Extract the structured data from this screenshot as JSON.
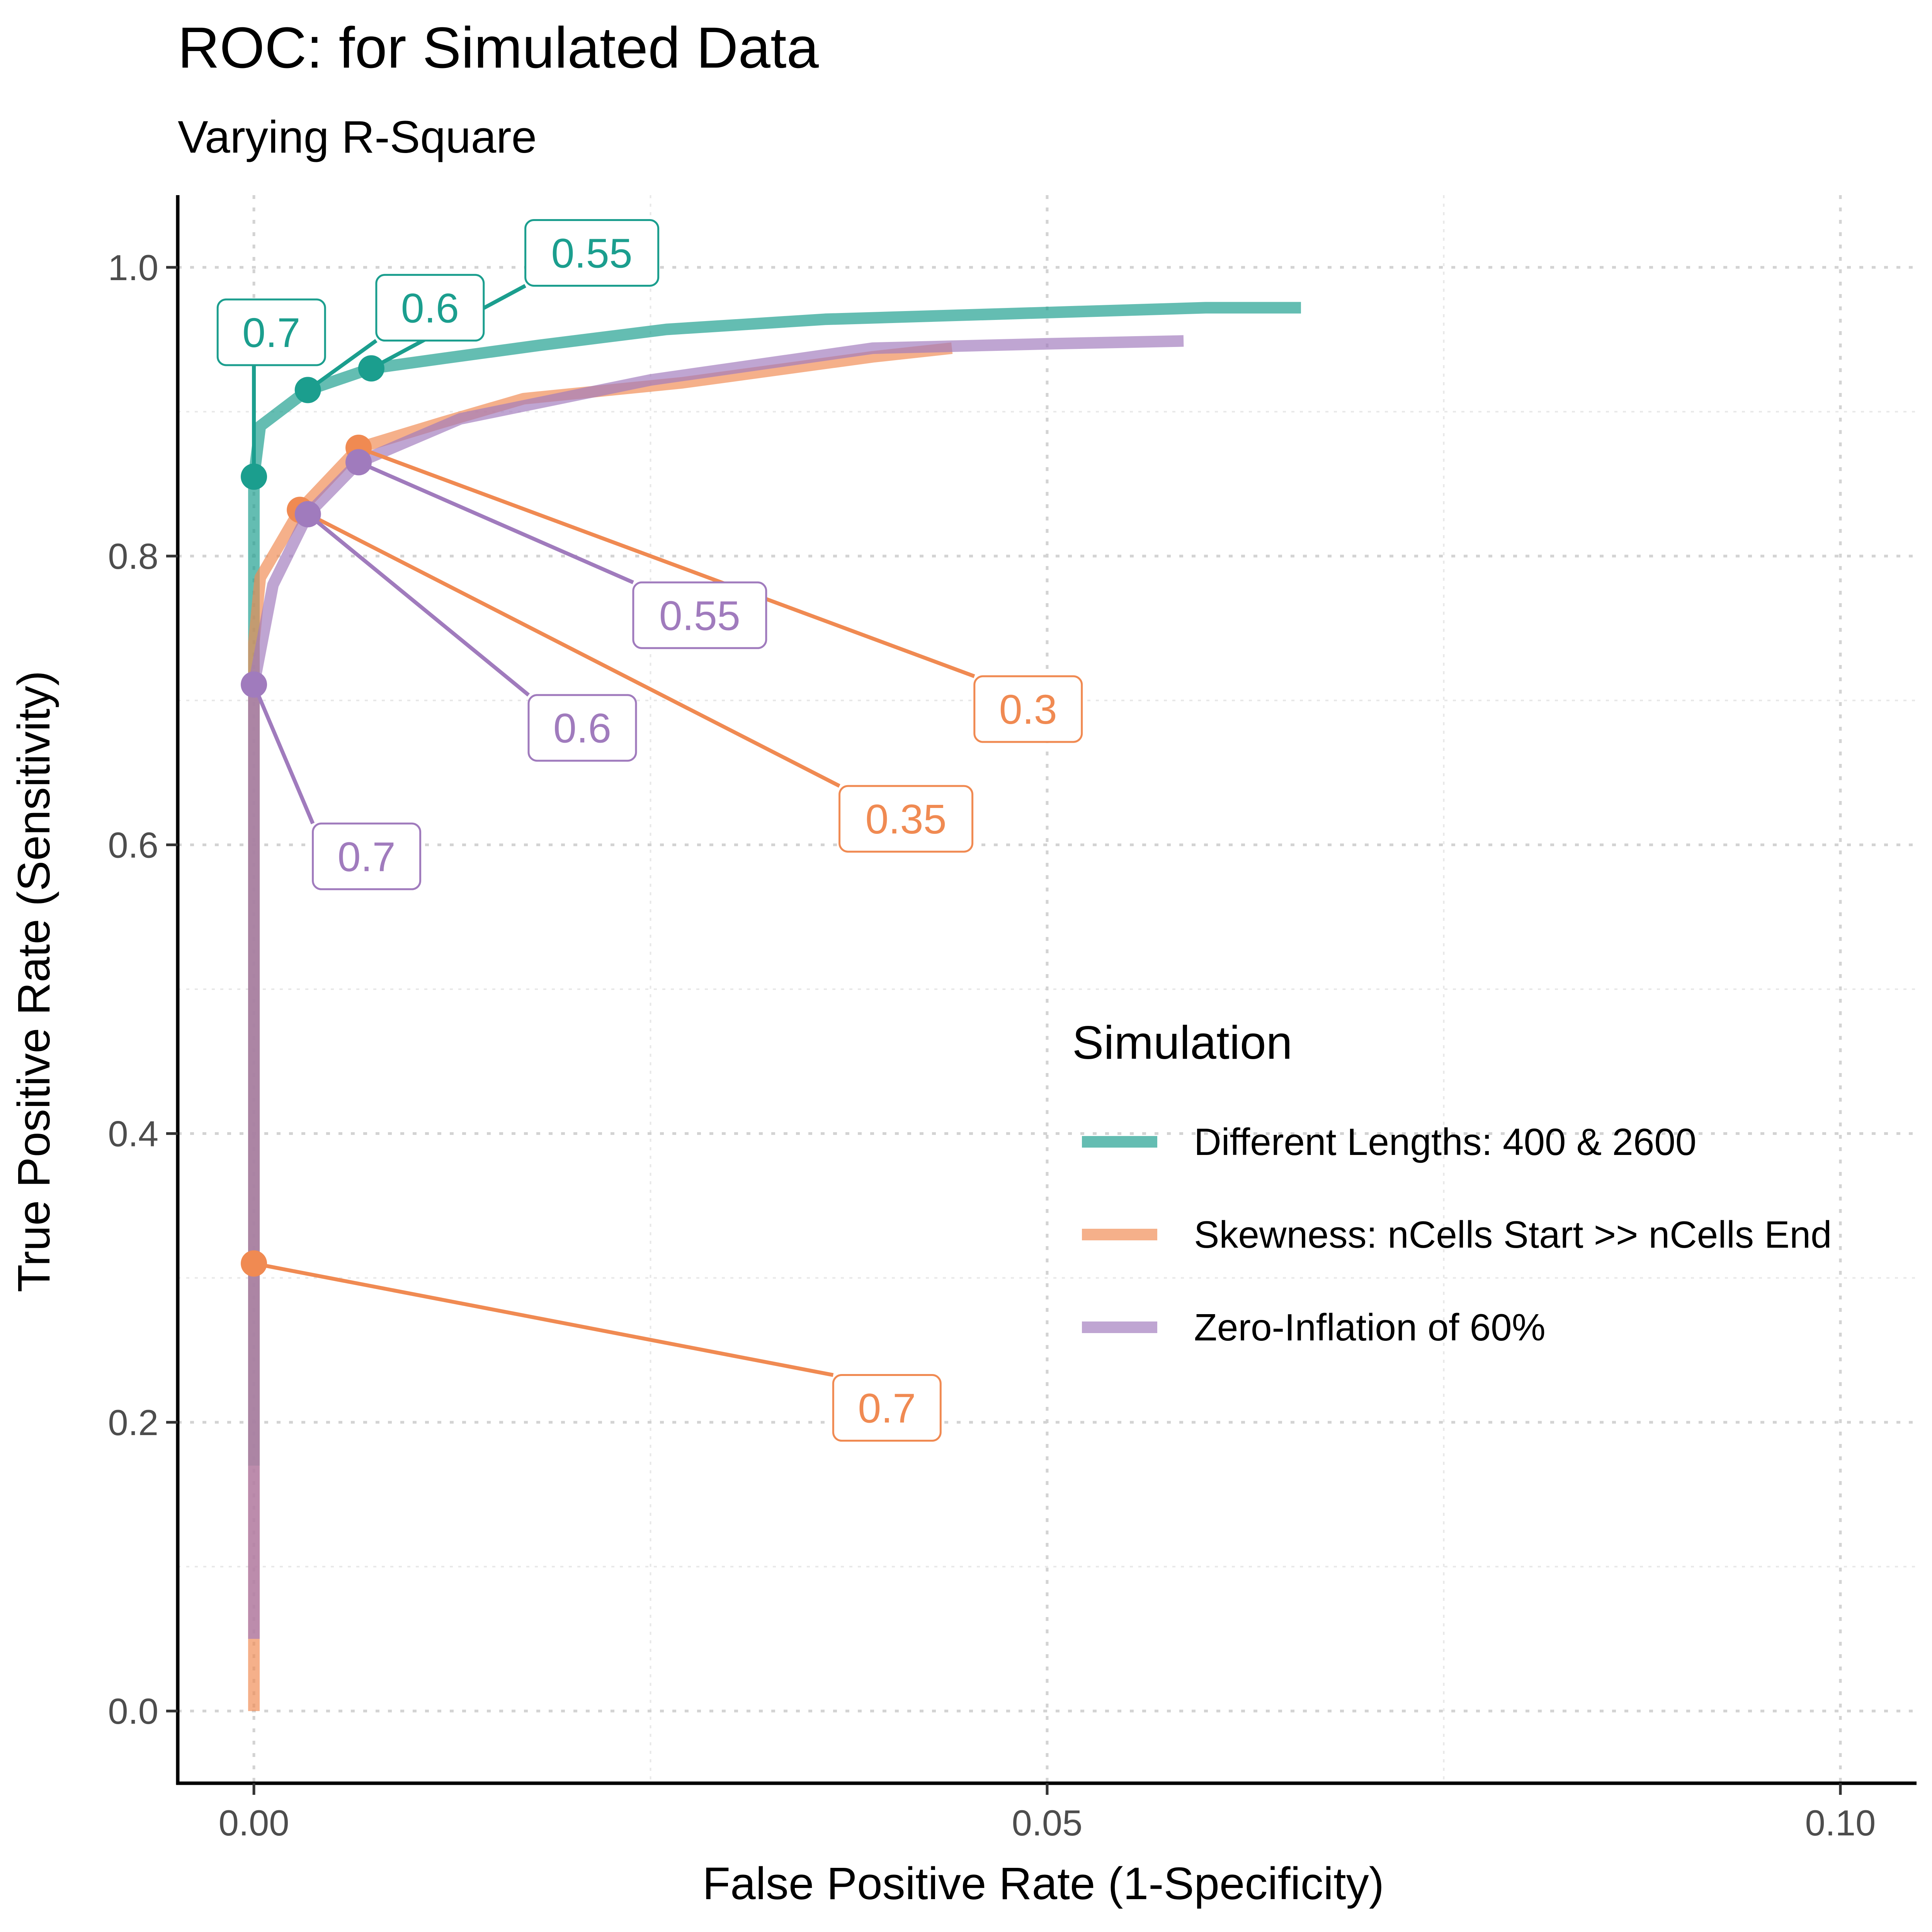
{
  "chart_data": {
    "type": "line",
    "title": "ROC: for Simulated Data",
    "subtitle": "Varying R-Square",
    "xlabel": "False Positive Rate (1-Specificity)",
    "ylabel": "True Positive Rate (Sensitivity)",
    "xlim": [
      -0.0048,
      0.1048
    ],
    "ylim": [
      -0.05,
      1.05
    ],
    "x_ticks": [
      0.0,
      0.05,
      0.1
    ],
    "x_tick_labels": [
      "0.00",
      "0.05",
      "0.10"
    ],
    "y_ticks": [
      0.0,
      0.2,
      0.4,
      0.6,
      0.8,
      1.0
    ],
    "y_tick_labels": [
      "0.0",
      "0.2",
      "0.4",
      "0.6",
      "0.8",
      "1.0"
    ],
    "grid": true,
    "legend": {
      "title": "Simulation",
      "placement": "right"
    },
    "series": [
      {
        "name": "Different Lengths: 400 & 2600",
        "color": "#1b9e8e",
        "x": [
          0.0,
          0.0,
          0.0,
          0.0,
          0.0004,
          0.0034,
          0.0074,
          0.012,
          0.018,
          0.026,
          0.036,
          0.048,
          0.06,
          0.066
        ],
        "y": [
          0.17,
          0.55,
          0.73,
          0.855,
          0.89,
          0.915,
          0.93,
          0.937,
          0.946,
          0.957,
          0.964,
          0.968,
          0.972,
          0.972
        ],
        "points": [
          {
            "x": 0.0,
            "y": 0.855,
            "label": "0.7",
            "label_x": 0.0011,
            "label_y": 0.955
          },
          {
            "x": 0.0034,
            "y": 0.915,
            "label": "0.6",
            "label_x": 0.0111,
            "label_y": 0.972
          },
          {
            "x": 0.0074,
            "y": 0.93,
            "label": "0.55",
            "label_x": 0.0213,
            "label_y": 1.01
          }
        ]
      },
      {
        "name": "Skewness: nCells Start >> nCells End",
        "color": "#f08a52",
        "x": [
          0.0,
          0.0,
          0.0,
          0.0,
          0.0004,
          0.0029,
          0.0066,
          0.012,
          0.017,
          0.027,
          0.039,
          0.044
        ],
        "y": [
          0.0,
          0.31,
          0.71,
          0.74,
          0.785,
          0.832,
          0.875,
          0.893,
          0.909,
          0.92,
          0.938,
          0.944
        ],
        "points": [
          {
            "x": 0.0,
            "y": 0.31,
            "label": "0.7",
            "label_x": 0.0399,
            "label_y": 0.21
          },
          {
            "x": 0.0029,
            "y": 0.832,
            "label": "0.35",
            "label_x": 0.0411,
            "label_y": 0.618
          },
          {
            "x": 0.0066,
            "y": 0.875,
            "label": "0.3",
            "label_x": 0.0488,
            "label_y": 0.694
          }
        ]
      },
      {
        "name": "Zero-Inflation of 60%",
        "color": "#a07bbd",
        "x": [
          0.0,
          0.0,
          0.0,
          0.0012,
          0.0034,
          0.0066,
          0.013,
          0.025,
          0.039,
          0.05,
          0.0586
        ],
        "y": [
          0.05,
          0.44,
          0.711,
          0.78,
          0.829,
          0.865,
          0.895,
          0.922,
          0.944,
          0.947,
          0.949
        ]
      }
    ],
    "series_points": [
      {
        "series": "Zero-Inflation of 60%",
        "x": 0.0,
        "y": 0.711,
        "label": "0.7",
        "label_x": 0.0071,
        "label_y": 0.592
      },
      {
        "series": "Zero-Inflation of 60%",
        "x": 0.0034,
        "y": 0.829,
        "label": "0.6",
        "label_x": 0.0207,
        "label_y": 0.681
      },
      {
        "series": "Zero-Inflation of 60%",
        "x": 0.0066,
        "y": 0.865,
        "label": "0.55",
        "label_x": 0.0281,
        "label_y": 0.759
      }
    ]
  }
}
